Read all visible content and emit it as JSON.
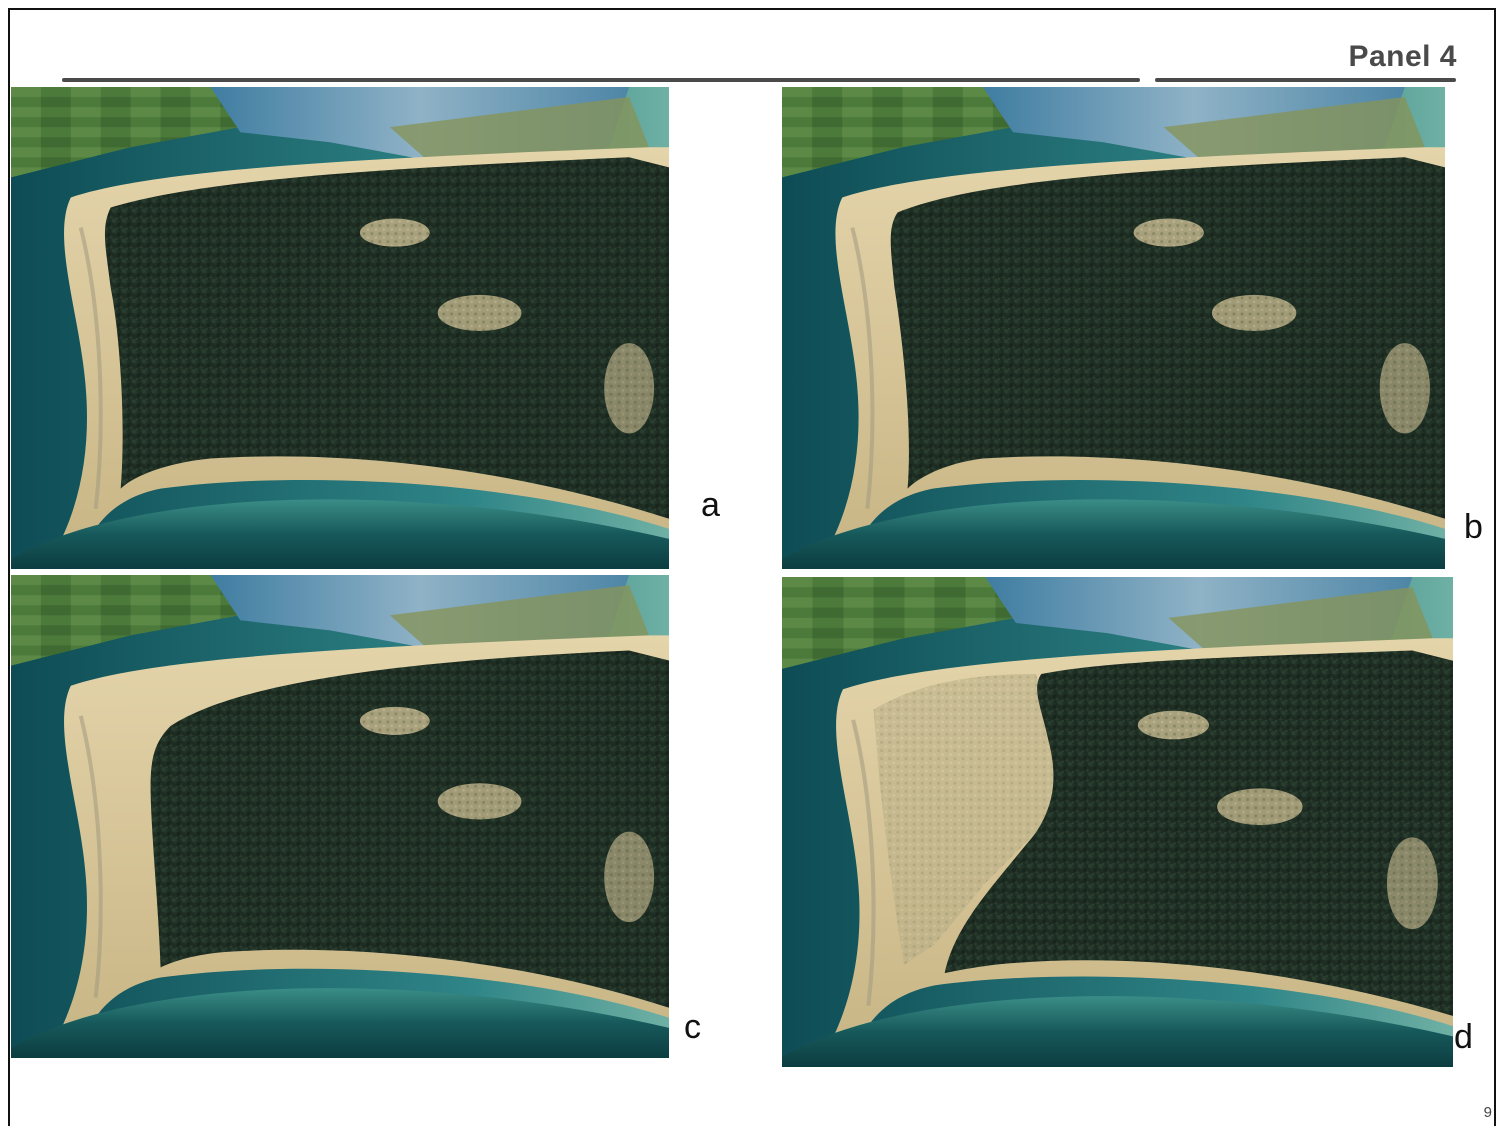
{
  "slide": {
    "title": "Panel 4",
    "page_number": "9"
  },
  "panels": [
    {
      "label": "a",
      "forest_extent": "full"
    },
    {
      "label": "b",
      "forest_extent": "full"
    },
    {
      "label": "c",
      "forest_extent": "slightly-reduced"
    },
    {
      "label": "d",
      "forest_extent": "reduced"
    }
  ],
  "colors": {
    "title_gray": "#4a4a4a",
    "forest": "#1f2e22",
    "sea_deep": "#0f4a4c",
    "sea_shallow": "#3f8c86",
    "sand": "#d8c79c",
    "lagoon": "#5d8aa6",
    "fields": "#4f7d3c"
  }
}
